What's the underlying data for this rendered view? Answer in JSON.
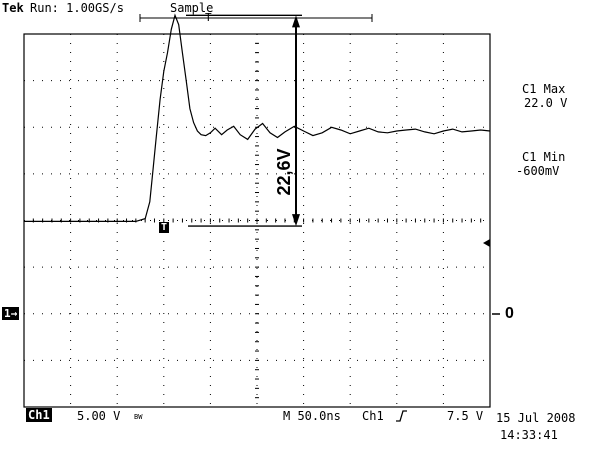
{
  "header": {
    "brand": "Tek",
    "status": "Run: 1.00GS/s",
    "acq_mode": "Sample"
  },
  "measurements": {
    "max_label": "C1 Max",
    "max_value": "22.0 V",
    "min_label": "C1 Min",
    "min_value": "-600mV"
  },
  "footer": {
    "channel": "Ch1",
    "volts_div": "5.00 V",
    "bw_mark": "BW",
    "timebase": "M 50.0ns",
    "trigger_source": "Ch1",
    "trigger_level": "7.5 V",
    "date": "15 Jul 2008",
    "time": "14:33:41"
  },
  "markers": {
    "channel_ref": "1",
    "trigger_marker": "T",
    "zero_label": "0"
  },
  "annotation": {
    "amplitude_label": "22,6V"
  },
  "chart_data": {
    "type": "line",
    "title": "",
    "xlabel": "",
    "ylabel": "",
    "x_unit": "ns",
    "y_unit": "V",
    "xlim": [
      -140,
      360
    ],
    "ylim": [
      -20,
      20
    ],
    "grid": true,
    "series": [
      {
        "x": [
          -140,
          -125,
          -110,
          -95,
          -80,
          -65,
          -50,
          -35,
          -20,
          -10,
          -5,
          -2,
          2,
          6,
          10,
          14,
          18,
          22,
          26,
          30,
          34,
          38,
          42,
          46,
          50,
          55,
          60,
          65,
          72,
          78,
          85,
          92,
          100,
          108,
          116,
          124,
          132,
          140,
          150,
          160,
          170,
          180,
          190,
          200,
          210,
          220,
          230,
          240,
          250,
          260,
          270,
          280,
          290,
          300,
          310,
          320,
          330,
          340,
          350,
          360
        ],
        "y": [
          -0.1,
          -0.1,
          -0.1,
          -0.1,
          -0.1,
          -0.1,
          -0.1,
          -0.1,
          -0.1,
          0.2,
          2,
          5,
          9,
          13,
          16,
          18,
          20.5,
          22,
          21,
          18,
          15,
          12,
          10.5,
          9.6,
          9.2,
          9.1,
          9.4,
          9.9,
          9.2,
          9.7,
          10.1,
          9.2,
          8.7,
          9.8,
          10.4,
          9.4,
          8.9,
          9.5,
          10.1,
          9.6,
          9.1,
          9.4,
          10,
          9.7,
          9.3,
          9.6,
          9.9,
          9.5,
          9.4,
          9.6,
          9.7,
          9.8,
          9.5,
          9.3,
          9.6,
          9.8,
          9.5,
          9.6,
          9.7,
          9.6
        ]
      }
    ],
    "amplitude_bracket": {
      "low": -0.6,
      "high": 22.0
    },
    "trigger": {
      "level": 7.5,
      "time": 0
    }
  }
}
